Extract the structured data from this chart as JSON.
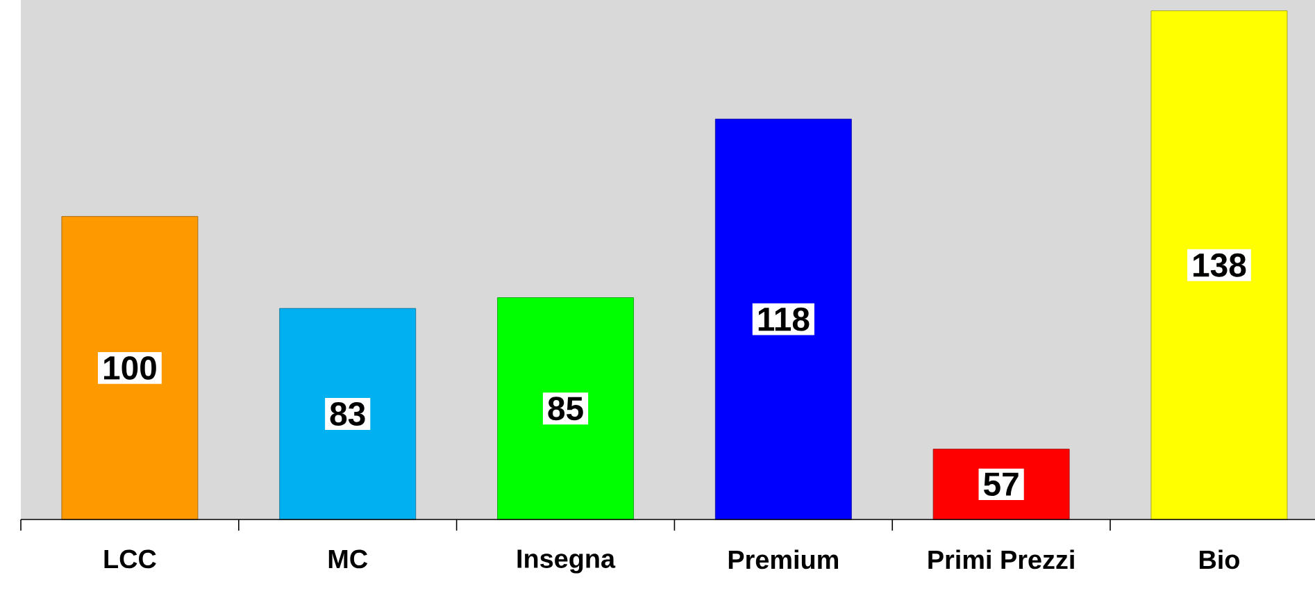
{
  "chart_data": {
    "type": "bar",
    "categories": [
      "LCC",
      "MC",
      "Insegna",
      "Premium",
      "Primi Prezzi",
      "Bio"
    ],
    "values": [
      100,
      83,
      85,
      118,
      57,
      138
    ],
    "colors": [
      "#ff9900",
      "#00b0f0",
      "#00ff00",
      "#0000ff",
      "#ff0000",
      "#ffff00"
    ],
    "ylim": [
      44,
      140
    ],
    "data_labels": true,
    "tick_labels": "x",
    "grid": false
  }
}
